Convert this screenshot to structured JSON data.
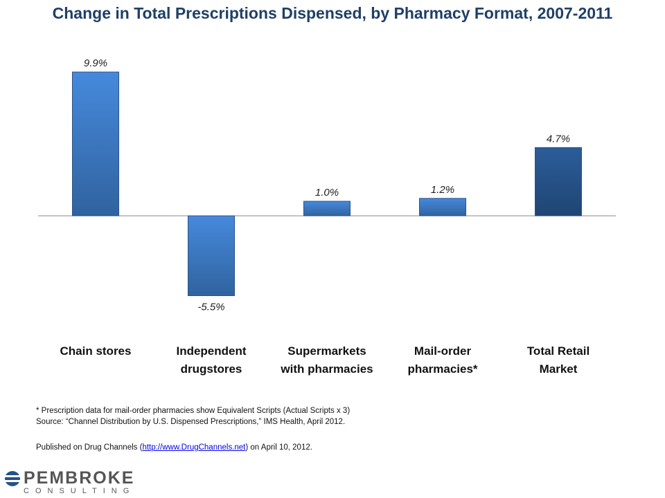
{
  "chart_data": {
    "type": "bar",
    "title": "Change in Total Prescriptions Dispensed, by Pharmacy Format, 2007-2011",
    "categories": [
      [
        "Chain stores"
      ],
      [
        "Independent",
        "drugstores"
      ],
      [
        "Supermarkets",
        "with pharmacies"
      ],
      [
        "Mail-order",
        "pharmacies*"
      ],
      [
        "Total Retail",
        "Market"
      ]
    ],
    "values": [
      9.9,
      -5.5,
      1.0,
      1.2,
      4.7
    ],
    "labels": [
      "9.9%",
      "-5.5%",
      "1.0%",
      "1.2%",
      "4.7%"
    ],
    "colors": [
      "#3f7fd0",
      "#3f7fd0",
      "#3f7fd0",
      "#3f7fd0",
      "#24518a"
    ],
    "xlabel": "",
    "ylabel": "",
    "ylim": [
      -7,
      10.5
    ],
    "grid": false
  },
  "footnotes": {
    "note": "* Prescription data for mail-order pharmacies show Equivalent Scripts (Actual Scripts x 3)",
    "source": "Source: “Channel Distribution by U.S. Dispensed Prescriptions,” IMS Health, April 2012.",
    "published_prefix": "Published on Drug Channels (",
    "published_link": "http://www.DrugChannels.net",
    "published_suffix": ") on April 10, 2012."
  },
  "logo": {
    "name": "PEMBROKE",
    "sub": "CONSULTING"
  }
}
